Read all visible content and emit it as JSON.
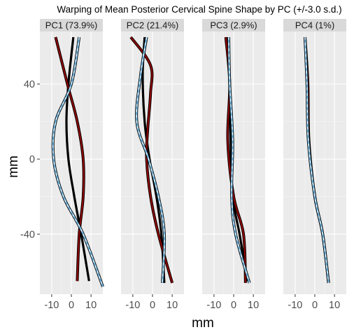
{
  "chart_data": {
    "type": "line",
    "title": "Warping of Mean Posterior Cervical Spine Shape by PC (+/-3.0 s.d.)",
    "xlabel": "mm",
    "ylabel": "mm",
    "xlim": [
      -16,
      16
    ],
    "ylim": [
      -72,
      68
    ],
    "x_ticks": [
      -10,
      0,
      10
    ],
    "y_ticks": [
      40,
      0,
      -40
    ],
    "grid": true,
    "colors": {
      "panel_bg": "#ebebeb",
      "strip_bg": "#d9d9d9",
      "grid_major": "#ffffff",
      "minus": "#8b0000",
      "plus": "#6baed6",
      "mean": "#000000"
    },
    "panels": [
      {
        "label": "PC1 (73.9%)",
        "mean": [
          [
            1,
            65
          ],
          [
            -1.5,
            40
          ],
          [
            -2.5,
            20
          ],
          [
            -1.5,
            0
          ],
          [
            1.5,
            -20
          ],
          [
            5,
            -40
          ],
          [
            9,
            -65
          ]
        ],
        "minus": [
          [
            -8,
            65
          ],
          [
            -2,
            40
          ],
          [
            3,
            20
          ],
          [
            6,
            0
          ],
          [
            6,
            -20
          ],
          [
            4,
            -40
          ],
          [
            3,
            -65
          ]
        ],
        "plus": [
          [
            4,
            65
          ],
          [
            0,
            40
          ],
          [
            -8,
            20
          ],
          [
            -9,
            0
          ],
          [
            -4,
            -20
          ],
          [
            6,
            -40
          ],
          [
            16,
            -68
          ]
        ]
      },
      {
        "label": "PC2 (21.4%)",
        "mean": [
          [
            -4,
            65
          ],
          [
            -5,
            45
          ],
          [
            -4,
            20
          ],
          [
            -1.5,
            0
          ],
          [
            2,
            -20
          ],
          [
            4.5,
            -40
          ],
          [
            6,
            -66
          ]
        ],
        "minus": [
          [
            -11,
            65
          ],
          [
            -1,
            50
          ],
          [
            -1,
            35
          ],
          [
            -2.5,
            15
          ],
          [
            -3,
            0
          ],
          [
            -1,
            -20
          ],
          [
            3,
            -40
          ],
          [
            10,
            -66
          ]
        ],
        "plus": [
          [
            -3,
            65
          ],
          [
            -6,
            45
          ],
          [
            -8,
            20
          ],
          [
            -2,
            0
          ],
          [
            3,
            -20
          ],
          [
            6,
            -40
          ],
          [
            5,
            -66
          ]
        ]
      },
      {
        "label": "PC3 (2.9%)",
        "mean": [
          [
            -3,
            65
          ],
          [
            -2,
            40
          ],
          [
            -1.5,
            10
          ],
          [
            -0.5,
            -20
          ],
          [
            3,
            -40
          ],
          [
            7,
            -65
          ]
        ],
        "minus": [
          [
            -4,
            65
          ],
          [
            -2,
            40
          ],
          [
            -3,
            10
          ],
          [
            0,
            -20
          ],
          [
            5,
            -40
          ],
          [
            6,
            -66
          ]
        ],
        "plus": [
          [
            -2.5,
            65
          ],
          [
            -2,
            40
          ],
          [
            -0.5,
            10
          ],
          [
            -1,
            -20
          ],
          [
            1,
            -40
          ],
          [
            8,
            -66
          ]
        ]
      },
      {
        "label": "PC4 (1%)",
        "mean": [
          [
            -5,
            65
          ],
          [
            -4,
            40
          ],
          [
            -3,
            10
          ],
          [
            0,
            -20
          ],
          [
            4,
            -40
          ],
          [
            7,
            -66
          ]
        ],
        "minus": [
          [
            -5,
            65
          ],
          [
            -3.5,
            40
          ],
          [
            -3,
            10
          ],
          [
            0,
            -20
          ],
          [
            4,
            -40
          ],
          [
            7,
            -66
          ]
        ],
        "plus": [
          [
            -5,
            65
          ],
          [
            -4,
            40
          ],
          [
            -3.3,
            10
          ],
          [
            0,
            -20
          ],
          [
            4,
            -40
          ],
          [
            7,
            -66
          ]
        ]
      }
    ]
  }
}
